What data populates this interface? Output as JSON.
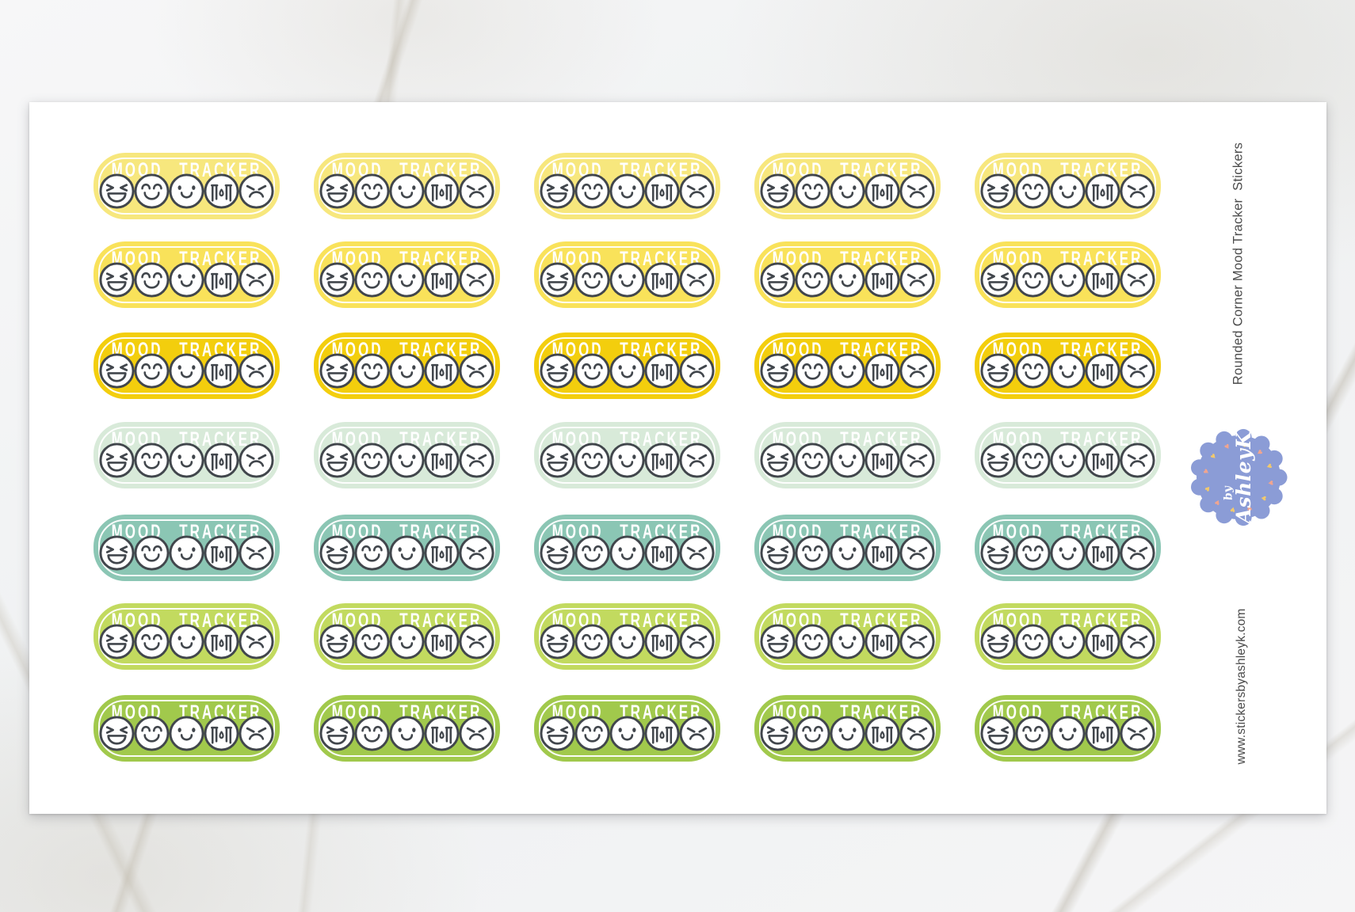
{
  "sheet": {
    "sticker_label": "MOOD TRACKER",
    "columns": 5,
    "rows": [
      {
        "name": "light-yellow",
        "color": "#F7E77D"
      },
      {
        "name": "yellow",
        "color": "#F9E25A"
      },
      {
        "name": "gold",
        "color": "#F3CE0D"
      },
      {
        "name": "mint",
        "color": "#D8EAD9"
      },
      {
        "name": "teal",
        "color": "#8BC6B4"
      },
      {
        "name": "lime",
        "color": "#C2DA5F"
      },
      {
        "name": "green",
        "color": "#A1C94C"
      }
    ],
    "faces": [
      "laughing-face",
      "happy-face",
      "smiling-face",
      "crying-face",
      "angry-face"
    ],
    "face_outline_color": "#41464C"
  },
  "side": {
    "product_title": "Rounded Corner Mood Tracker  Stickers",
    "website": "www.stickersbyashleyk.com",
    "text_color": "#4B4B4B",
    "badge": {
      "line1": "by",
      "line2": "AshleyK",
      "color": "#8B9CD6",
      "heart_colors": [
        "#F2C96D",
        "#F1A58F"
      ]
    }
  }
}
